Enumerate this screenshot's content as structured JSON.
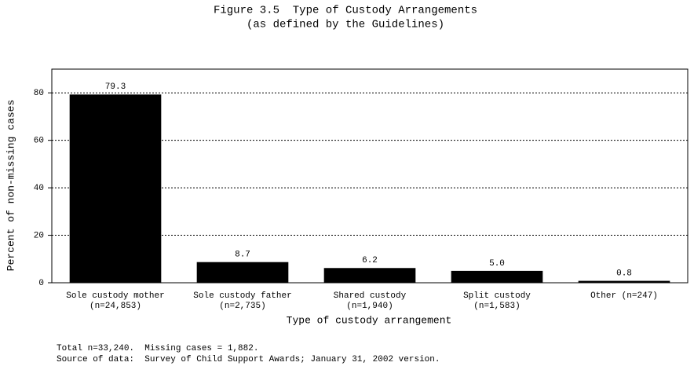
{
  "chart_data": {
    "type": "bar",
    "title": "Figure 3.5  Type of Custody Arrangements",
    "subtitle": "(as defined by the Guidelines)",
    "x_label": "Type of custody arrangement",
    "y_label": "Percent of non-missing cases",
    "categories": [
      "Sole custody mother",
      "Sole custody father",
      "Shared custody",
      "Split custody",
      "Other (n=247)"
    ],
    "category_counts": [
      "(n=24,853)",
      "(n=2,735)",
      "(n=1,940)",
      "(n=1,583)",
      null
    ],
    "values": [
      79.3,
      8.7,
      6.2,
      5.0,
      0.8
    ],
    "value_labels": [
      "79.3",
      "8.7",
      "6.2",
      "5.0",
      "0.8"
    ],
    "color": "#000000",
    "ylim": [
      0,
      90
    ],
    "yticks": [
      0,
      20,
      40,
      60,
      80
    ],
    "grid": true,
    "notes": [
      "Total n=33,240.  Missing cases = 1,882.",
      "Source of data:  Survey of Child Support Awards; January 31, 2002 version."
    ]
  }
}
